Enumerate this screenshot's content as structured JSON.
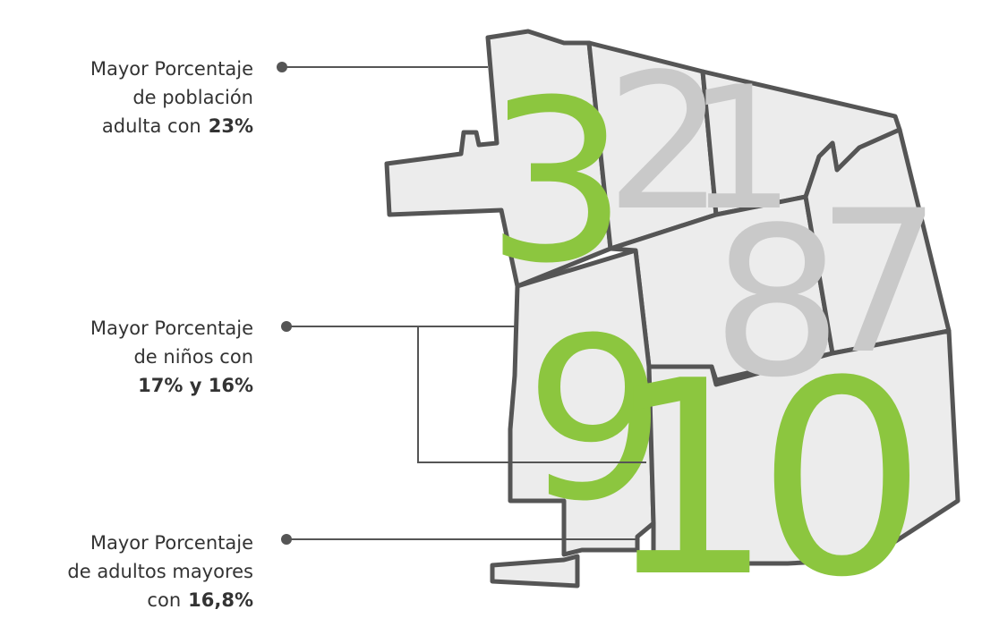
{
  "annotations": [
    {
      "lines": [
        [
          {
            "text": "Mayor Porcentaje"
          }
        ],
        [
          {
            "text": "de población"
          }
        ],
        [
          {
            "text": "adulta con"
          },
          {
            "text": "23%",
            "bold": true
          }
        ]
      ]
    },
    {
      "lines": [
        [
          {
            "text": "Mayor Porcentaje"
          }
        ],
        [
          {
            "text": "de niños con"
          }
        ],
        [
          {
            "text": "17% y 16%",
            "bold": true
          }
        ]
      ]
    },
    {
      "lines": [
        [
          {
            "text": "Mayor Porcentaje"
          }
        ],
        [
          {
            "text": "de adultos mayores"
          }
        ],
        [
          {
            "text": "con"
          },
          {
            "text": "16,8%",
            "bold": true
          }
        ]
      ]
    }
  ],
  "districts": [
    {
      "label": "3",
      "color": "#8cc63f"
    },
    {
      "label": "2",
      "color": "#c9c9c9"
    },
    {
      "label": "1",
      "color": "#c9c9c9"
    },
    {
      "label": "8",
      "color": "#c9c9c9"
    },
    {
      "label": "7",
      "color": "#c9c9c9"
    },
    {
      "label": "9",
      "color": "#8cc63f"
    },
    {
      "label": "10",
      "color": "#8cc63f"
    }
  ]
}
